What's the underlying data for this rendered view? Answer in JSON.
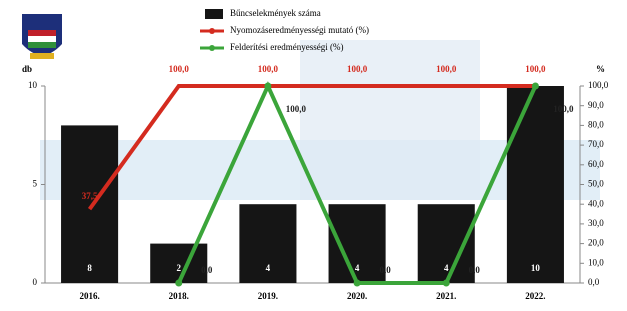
{
  "chart_data": {
    "type": "bar-line",
    "y_label": "db",
    "y2_label": "%",
    "categories": [
      "2016.",
      "2018.",
      "2019.",
      "2020.",
      "2021.",
      "2022."
    ],
    "ylim": [
      0,
      10
    ],
    "yticks": [
      0,
      5,
      10
    ],
    "y2lim": [
      0,
      100
    ],
    "y2ticks": [
      {
        "value": 0,
        "label": "0,0"
      },
      {
        "value": 10,
        "label": "10,0"
      },
      {
        "value": 20,
        "label": "20,0"
      },
      {
        "value": 30,
        "label": "30,0"
      },
      {
        "value": 40,
        "label": "40,0"
      },
      {
        "value": 50,
        "label": "50,0"
      },
      {
        "value": 60,
        "label": "60,0"
      },
      {
        "value": 70,
        "label": "70,0"
      },
      {
        "value": 80,
        "label": "80,0"
      },
      {
        "value": 90,
        "label": "90,0"
      },
      {
        "value": 100,
        "label": "100,0"
      }
    ],
    "series": [
      {
        "name": "Bűncselekmények száma",
        "type": "bar",
        "color": "#151515",
        "values": [
          8,
          2,
          4,
          4,
          4,
          10
        ]
      },
      {
        "name": "Nyomozáseredményességi mutató (%)",
        "type": "line",
        "axis": "y2",
        "color": "#d42b1f",
        "values": [
          37.5,
          100,
          100,
          100,
          100,
          100
        ],
        "value_labels": [
          "37,5",
          "100,0",
          "100,0",
          "100,0",
          "100,0",
          "100,0"
        ]
      },
      {
        "name": "Felderítési eredményességi (%)",
        "type": "line",
        "axis": "y2",
        "color": "#3ba53a",
        "values": [
          null,
          0,
          100,
          0,
          0,
          100
        ],
        "value_labels": [
          null,
          "0,0",
          "100,0",
          "0,0",
          "0,0",
          "100,0"
        ]
      }
    ]
  }
}
